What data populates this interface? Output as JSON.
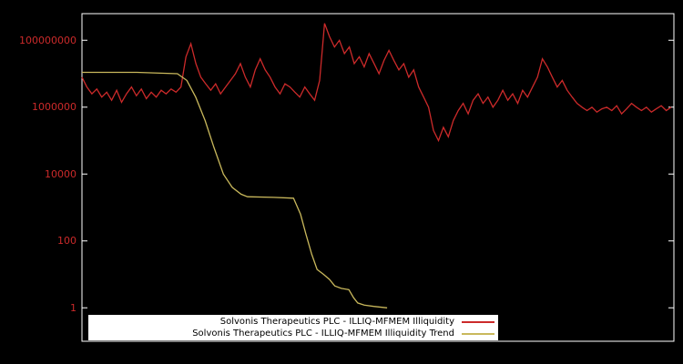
{
  "chart_data": {
    "type": "line",
    "title": "",
    "xlabel": "",
    "ylabel": "",
    "y_scale": "log",
    "ylim": [
      0.1,
      630000000
    ],
    "grid": false,
    "legend_position": "bottom-center",
    "colors": {
      "illiquidity": "#cc2a2a",
      "trend": "#c9b85c",
      "background": "#000000",
      "axis": "#ffffff",
      "tick_label": "#cc2a2a"
    },
    "yticks": [
      {
        "label": "100000000",
        "value": 100000000
      },
      {
        "label": "1000000",
        "value": 1000000
      },
      {
        "label": "10000",
        "value": 10000
      },
      {
        "label": "100",
        "value": 100
      },
      {
        "label": "1",
        "value": 1
      }
    ],
    "series": [
      {
        "name": "Solvonis Therapeutics PLC - ILLIQ-MFMEM Illiquidity",
        "values": [
          7900000.0,
          4000000.0,
          2500000.0,
          3500000.0,
          2000000.0,
          2800000.0,
          1600000.0,
          3200000.0,
          1400000.0,
          2500000.0,
          4000000.0,
          2200000.0,
          3500000.0,
          1800000.0,
          2800000.0,
          2000000.0,
          3200000.0,
          2500000.0,
          3500000.0,
          2800000.0,
          4000000.0,
          32000000.0,
          79000000.0,
          20000000.0,
          7900000.0,
          5000000.0,
          3200000.0,
          5000000.0,
          2500000.0,
          4000000.0,
          6300000.0,
          10000000.0,
          20000000.0,
          7900000.0,
          4000000.0,
          13000000.0,
          28000000.0,
          13000000.0,
          7900000.0,
          4000000.0,
          2500000.0,
          5000000.0,
          4000000.0,
          2800000.0,
          2000000.0,
          4000000.0,
          2500000.0,
          1600000.0,
          6300000.0,
          320000000.0,
          130000000.0,
          63000000.0,
          100000000.0,
          40000000.0,
          63000000.0,
          20000000.0,
          32000000.0,
          16000000.0,
          40000000.0,
          20000000.0,
          10000000.0,
          25000000.0,
          50000000.0,
          25000000.0,
          13000000.0,
          20000000.0,
          7900000.0,
          13000000.0,
          4000000.0,
          2000000.0,
          1000000.0,
          200000.0,
          100000.0,
          250000.0,
          130000.0,
          400000.0,
          790000.0,
          1300000.0,
          630000.0,
          1600000.0,
          2500000.0,
          1300000.0,
          2000000.0,
          1000000.0,
          1600000.0,
          3200000.0,
          1600000.0,
          2500000.0,
          1300000.0,
          3200000.0,
          2000000.0,
          4000000.0,
          7900000.0,
          28000000.0,
          16000000.0,
          7900000.0,
          4000000.0,
          6300000.0,
          3200000.0,
          2000000.0,
          1300000.0,
          1000000.0,
          790000.0,
          1000000.0,
          710000.0,
          890000.0,
          1000000.0,
          790000.0,
          1100000.0,
          630000.0,
          890000.0,
          1300000.0,
          1000000.0,
          790000.0,
          1000000.0,
          710000.0,
          890000.0,
          1100000.0,
          790000.0,
          1000000.0
        ]
      },
      {
        "name": "Solvonis Therapeutics PLC - ILLIQ-MFMEM Illiquidity Trend",
        "points": [
          [
            0.0,
            11000000.0
          ],
          [
            0.093,
            11000000.0
          ],
          [
            0.162,
            10000000.0
          ],
          [
            0.178,
            6300000.0
          ],
          [
            0.193,
            2000000.0
          ],
          [
            0.209,
            400000.0
          ],
          [
            0.224,
            63000.0
          ],
          [
            0.24,
            10000.0
          ],
          [
            0.255,
            4000.0
          ],
          [
            0.27,
            2500.0
          ],
          [
            0.281,
            2100.0
          ],
          [
            0.325,
            2000.0
          ],
          [
            0.359,
            1900.0
          ],
          [
            0.371,
            630.0
          ],
          [
            0.38,
            160.0
          ],
          [
            0.39,
            40.0
          ],
          [
            0.399,
            14.0
          ],
          [
            0.41,
            10.0
          ],
          [
            0.42,
            7.1
          ],
          [
            0.429,
            4.5
          ],
          [
            0.44,
            3.8
          ],
          [
            0.453,
            3.5
          ],
          [
            0.461,
            2.0
          ],
          [
            0.468,
            1.4
          ],
          [
            0.479,
            1.2
          ],
          [
            0.495,
            1.1
          ],
          [
            0.518,
            1.0
          ]
        ]
      }
    ]
  },
  "legend": {
    "entries": [
      {
        "label": "Solvonis Therapeutics PLC - ILLIQ-MFMEM Illiquidity"
      },
      {
        "label": "Solvonis Therapeutics PLC - ILLIQ-MFMEM Illiquidity Trend"
      }
    ]
  }
}
